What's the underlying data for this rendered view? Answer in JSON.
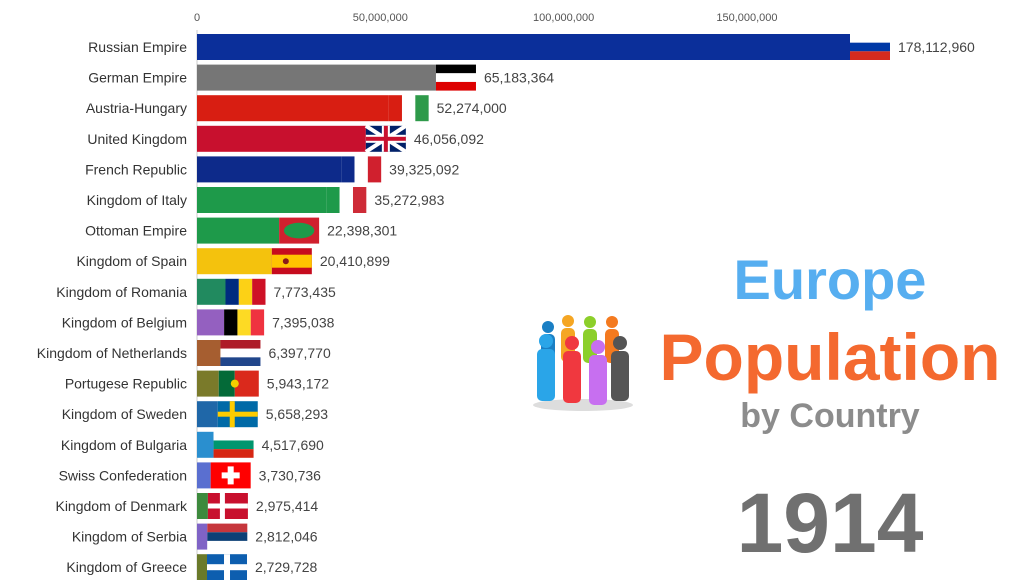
{
  "title": {
    "line1": "Europe",
    "line2": "Population",
    "line3": "by Country"
  },
  "year": "1914",
  "chart_data": {
    "type": "bar",
    "orientation": "horizontal",
    "xlim": [
      0,
      180000000
    ],
    "x_ticks": [
      0,
      50000000,
      100000000,
      150000000
    ],
    "x_tick_labels": [
      "0",
      "50,000,000",
      "100,000,000",
      "150,000,000"
    ],
    "grid": false,
    "categories": [
      "Russian Empire",
      "German Empire",
      "Austria-Hungary",
      "United Kingdom",
      "French Republic",
      "Kingdom of Italy",
      "Ottoman Empire",
      "Kingdom of Spain",
      "Kingdom of Romania",
      "Kingdom of Belgium",
      "Kingdom of Netherlands",
      "Portugese Republic",
      "Kingdom of Sweden",
      "Kingdom of Bulgaria",
      "Swiss Confederation",
      "Kingdom of Denmark",
      "Kingdom of Serbia",
      "Kingdom of Greece"
    ],
    "values": [
      178112960,
      65183364,
      52274000,
      46056092,
      39325092,
      35272983,
      22398301,
      20410899,
      7773435,
      7395038,
      6397770,
      5943172,
      5658293,
      4517690,
      3730736,
      2975414,
      2812046,
      2729728
    ],
    "value_labels": [
      "178,112,960",
      "65,183,364",
      "52,274,000",
      "46,056,092",
      "39,325,092",
      "35,272,983",
      "22,398,301",
      "20,410,899",
      "7,773,435",
      "7,395,038",
      "6,397,770",
      "5,943,172",
      "5,658,293",
      "4,517,690",
      "3,730,736",
      "2,975,414",
      "2,812,046",
      "2,729,728"
    ],
    "bar_colors": [
      "#0b2f9a",
      "#767676",
      "#d81e12",
      "#c8102e",
      "#0d2a8a",
      "#1e9a4a",
      "#1e9a4a",
      "#f4c20d",
      "#218a5f",
      "#9460c0",
      "#a65e30",
      "#7a7a2a",
      "#1f67a8",
      "#2a8fcf",
      "#5a6fd0",
      "#3d8a3d",
      "#7f63c6",
      "#6a7a2a"
    ],
    "flags": [
      {
        "type": "h",
        "colors": [
          "#ffffff",
          "#0039a6",
          "#d52b1e"
        ]
      },
      {
        "type": "h",
        "colors": [
          "#000000",
          "#ffffff",
          "#dd0000"
        ]
      },
      {
        "type": "v",
        "colors": [
          "#d81e12",
          "#ffffff",
          "#2e9a4a"
        ]
      },
      {
        "type": "uk",
        "colors": [
          "#012169",
          "#ffffff",
          "#c8102e"
        ]
      },
      {
        "type": "v",
        "colors": [
          "#0d2a8a",
          "#ffffff",
          "#d0202e"
        ]
      },
      {
        "type": "v",
        "colors": [
          "#1e9a4a",
          "#ffffff",
          "#ce2b37"
        ]
      },
      {
        "type": "oval",
        "colors": [
          "#d0202e",
          "#1e9a4a"
        ]
      },
      {
        "type": "h3",
        "colors": [
          "#c60b1e",
          "#ffc400",
          "#c60b1e"
        ]
      },
      {
        "type": "v",
        "colors": [
          "#002b7f",
          "#fcd116",
          "#ce1126"
        ]
      },
      {
        "type": "v",
        "colors": [
          "#000000",
          "#fdda24",
          "#ef3340"
        ]
      },
      {
        "type": "h",
        "colors": [
          "#ae1c28",
          "#ffffff",
          "#21468b"
        ]
      },
      {
        "type": "v2",
        "colors": [
          "#046a38",
          "#da291c"
        ]
      },
      {
        "type": "nordic",
        "colors": [
          "#006aa7",
          "#fecc00"
        ]
      },
      {
        "type": "h",
        "colors": [
          "#ffffff",
          "#00966e",
          "#d62612"
        ]
      },
      {
        "type": "swiss",
        "colors": [
          "#ff0000",
          "#ffffff"
        ]
      },
      {
        "type": "nordic",
        "colors": [
          "#c8102e",
          "#ffffff"
        ]
      },
      {
        "type": "h",
        "colors": [
          "#c6363c",
          "#0c4076",
          "#ffffff"
        ]
      },
      {
        "type": "greek",
        "colors": [
          "#0d5eaf",
          "#ffffff"
        ]
      }
    ]
  }
}
